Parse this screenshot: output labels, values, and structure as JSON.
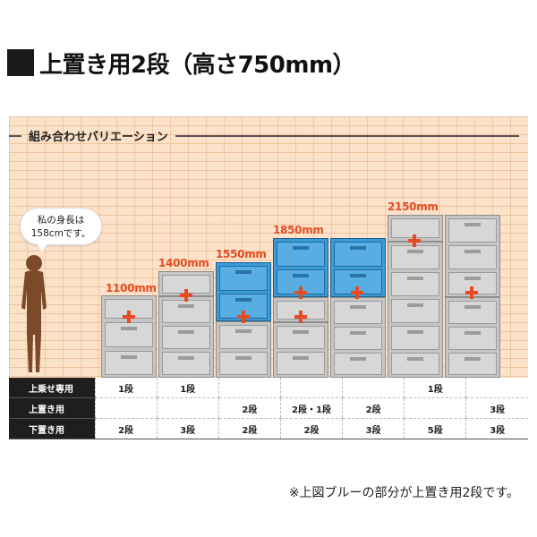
{
  "heading": "上置き用2段（高さ750mm）",
  "variation_title": "組み合わせバリエーション",
  "bubble": {
    "line1": "私の身長は",
    "line2": "158cmです。"
  },
  "height_labels": [
    "1100mm",
    "1400mm",
    "1550mm",
    "1850mm",
    "2150mm"
  ],
  "table": {
    "rows": [
      {
        "label": "上乗せ専用",
        "cells": [
          "1段",
          "1段",
          "",
          "",
          "",
          "1段",
          ""
        ]
      },
      {
        "label": "上置き用",
        "cells": [
          "",
          "",
          "2段",
          "2段・1段",
          "2段",
          "",
          "3段"
        ]
      },
      {
        "label": "下置き用",
        "cells": [
          "2段",
          "3段",
          "2段",
          "2段",
          "3段",
          "5段",
          "3段"
        ]
      }
    ]
  },
  "note": "※上図ブルーの部分が上置き用2段です。",
  "colors": {
    "accent": "#e64b22",
    "blue_cabinet": "#3b9bd6",
    "gray_cabinet": "#c6c6c6",
    "panel_bg": "#fbe2c9"
  }
}
